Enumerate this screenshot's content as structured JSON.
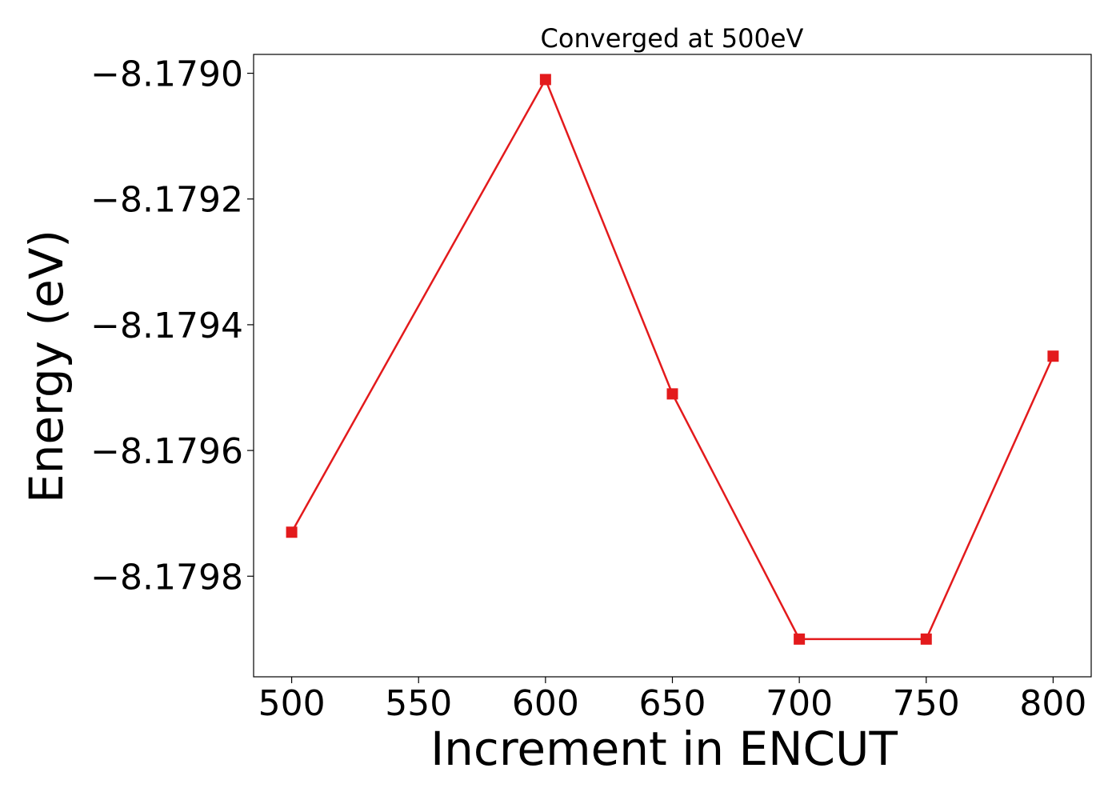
{
  "chart_data": {
    "type": "line",
    "title": "Converged at 500eV",
    "xlabel": "Increment in ENCUT",
    "ylabel": "Energy (eV)",
    "x": [
      500,
      600,
      650,
      700,
      750,
      800
    ],
    "series": [
      {
        "values": [
          -8.17973,
          -8.17901,
          -8.17951,
          -8.1799,
          -8.1799,
          -8.17945
        ],
        "color": "#e31a1c",
        "marker": "square"
      }
    ],
    "xticks": [
      500,
      550,
      600,
      650,
      700,
      750,
      800
    ],
    "xtick_labels": [
      "500",
      "550",
      "600",
      "650",
      "700",
      "750",
      "800"
    ],
    "yticks": [
      -8.179,
      -8.1792,
      -8.1794,
      -8.1796,
      -8.1798
    ],
    "ytick_labels": [
      "−8.1790",
      "−8.1792",
      "−8.1794",
      "−8.1796",
      "−8.1798"
    ],
    "xlim": [
      485,
      815
    ],
    "ylim": [
      -8.17996,
      -8.17897
    ],
    "grid": false,
    "legend": false
  }
}
